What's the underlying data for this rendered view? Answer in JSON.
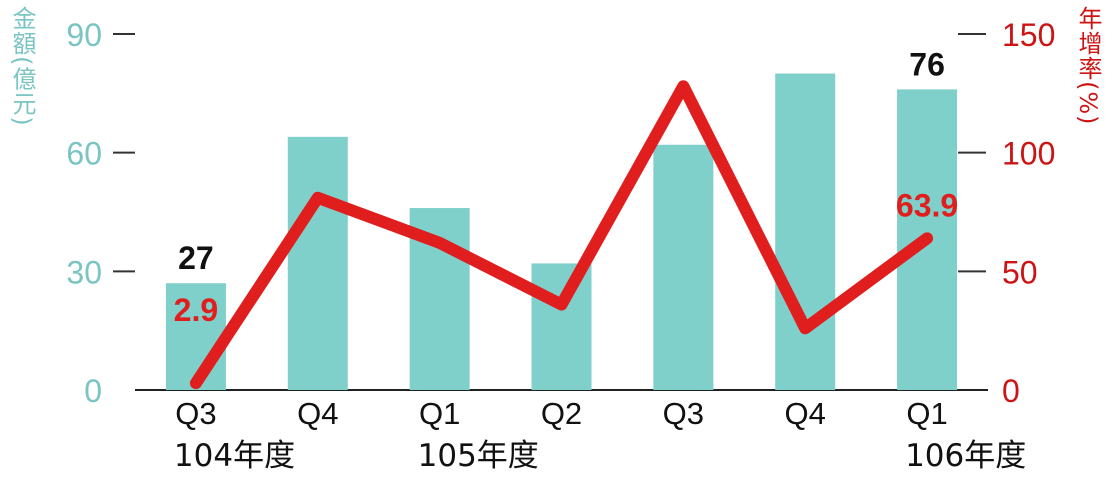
{
  "colors": {
    "bar": "#7fcfcb",
    "line": "#e01e1e",
    "left_axis": "#7ac4c4",
    "right_axis": "#cc1414",
    "data_label_dark": "#111111",
    "data_label_red": "#e01e1e",
    "axis_line": "#222222"
  },
  "chart_data": {
    "type": "bar+line",
    "y_left_label": "金額(億元)",
    "y_right_label": "年增率(%)",
    "y_left": {
      "ticks": [
        0,
        30,
        60,
        90
      ],
      "ylim": [
        0,
        90
      ]
    },
    "y_right": {
      "ticks": [
        0,
        50,
        100,
        150
      ],
      "ylim": [
        0,
        150
      ]
    },
    "categories": [
      "Q3",
      "Q4",
      "Q1",
      "Q2",
      "Q3",
      "Q4",
      "Q1"
    ],
    "year_labels": [
      "104年度",
      "",
      "105年度",
      "",
      "",
      "",
      "106年度"
    ],
    "series": [
      {
        "type": "bar",
        "axis": "left",
        "values": [
          27,
          64,
          46,
          32,
          62,
          80,
          76
        ]
      },
      {
        "type": "line",
        "axis": "right",
        "values": [
          2.9,
          81,
          62,
          36,
          128,
          26,
          63.9
        ]
      }
    ],
    "annotations": [
      {
        "series": 0,
        "index": 0,
        "text": "27",
        "color": "dark"
      },
      {
        "series": 0,
        "index": 6,
        "text": "76",
        "color": "dark"
      },
      {
        "series": 1,
        "index": 0,
        "text": "2.9",
        "color": "red"
      },
      {
        "series": 1,
        "index": 6,
        "text": "63.9",
        "color": "red"
      }
    ]
  }
}
